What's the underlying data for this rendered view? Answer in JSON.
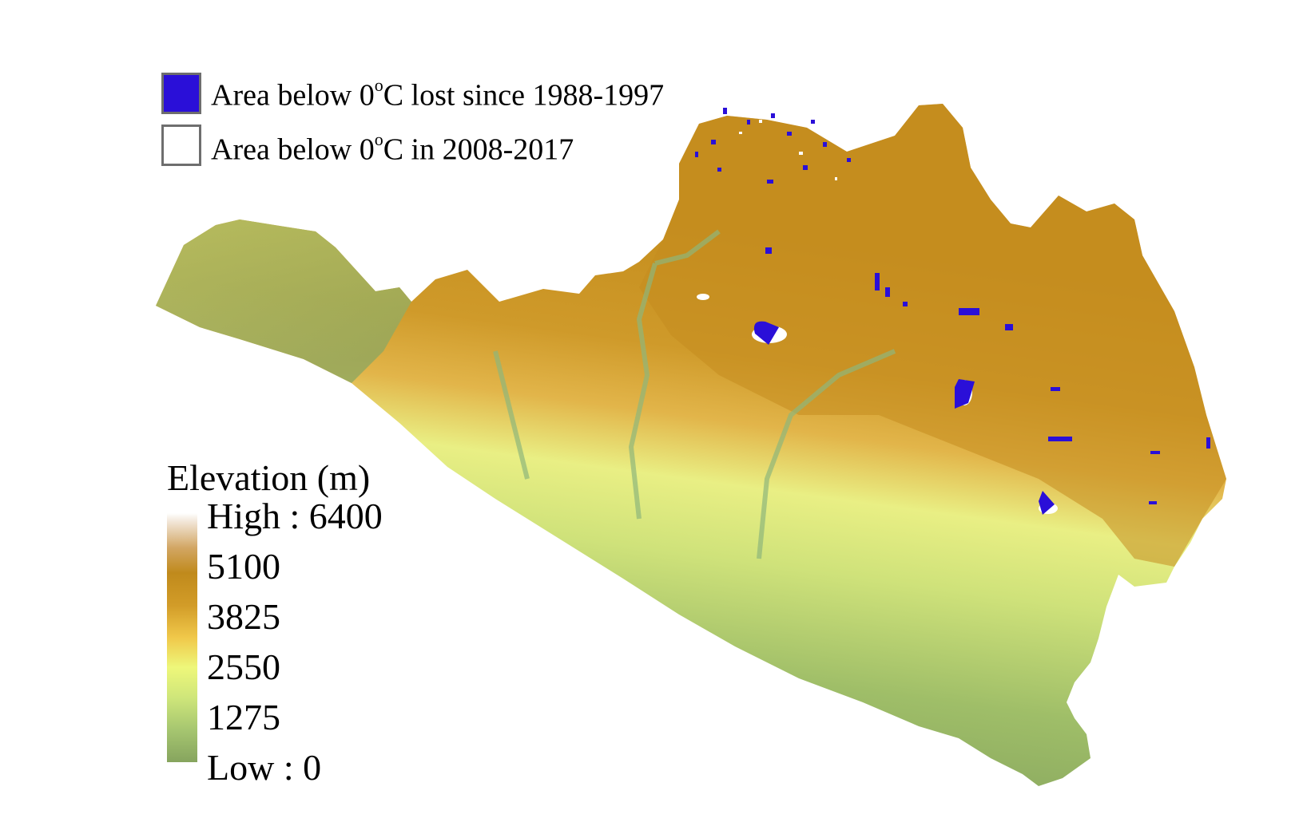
{
  "legend": {
    "lost_area": {
      "label": "Area below 0",
      "superscript": "o",
      "suffix": "C lost since 1988-1997",
      "color": "#2a0fd8"
    },
    "current_area": {
      "label": "Area below 0",
      "superscript": "o",
      "suffix": "C in 2008-2017",
      "color": "#ffffff"
    }
  },
  "elevation_legend": {
    "title": "Elevation (m)",
    "labels": [
      "High : 6400",
      "5100",
      "3825",
      "2550",
      "1275",
      "Low : 0"
    ]
  },
  "colors": {
    "lowland": "#8fad65",
    "midland": "#e6f07e",
    "upland": "#d6a12e",
    "highland": "#c98e1c",
    "lost_ice": "#2a0fd8",
    "current_ice": "#ffffff"
  }
}
